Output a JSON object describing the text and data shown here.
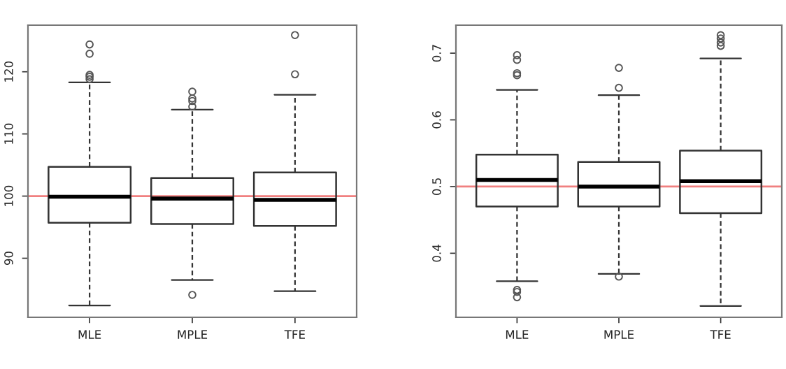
{
  "chart_data": [
    {
      "type": "box",
      "categories": [
        "MLE",
        "MPLE",
        "TFE"
      ],
      "ylim": [
        80.5,
        127.5
      ],
      "yticks": [
        90,
        100,
        110,
        120
      ],
      "grid": false,
      "boxes": [
        {
          "low": 82.4,
          "q1": 95.7,
          "median": 99.9,
          "q3": 104.7,
          "high": 118.3,
          "outliers": [
            124.4,
            122.9,
            119.5,
            119.2,
            118.8
          ]
        },
        {
          "low": 86.5,
          "q1": 95.5,
          "median": 99.6,
          "q3": 102.9,
          "high": 113.9,
          "outliers": [
            116.8,
            115.7,
            115.3,
            114.4,
            84.1
          ]
        },
        {
          "low": 84.7,
          "q1": 95.2,
          "median": 99.4,
          "q3": 103.8,
          "high": 116.3,
          "outliers": [
            125.9,
            119.6
          ]
        }
      ],
      "ref_lines": [
        {
          "axis": "y",
          "value": 100,
          "color": "#f08080"
        }
      ]
    },
    {
      "type": "box",
      "categories": [
        "MLE",
        "MPLE",
        "TFE"
      ],
      "ylim": [
        0.304,
        0.742
      ],
      "yticks": [
        0.4,
        0.5,
        0.6,
        0.7
      ],
      "grid": false,
      "boxes": [
        {
          "low": 0.358,
          "q1": 0.47,
          "median": 0.51,
          "q3": 0.548,
          "high": 0.645,
          "outliers": [
            0.697,
            0.69,
            0.67,
            0.667,
            0.345,
            0.342,
            0.334
          ]
        },
        {
          "low": 0.369,
          "q1": 0.47,
          "median": 0.5,
          "q3": 0.537,
          "high": 0.637,
          "outliers": [
            0.678,
            0.648,
            0.365
          ]
        },
        {
          "low": 0.321,
          "q1": 0.46,
          "median": 0.508,
          "q3": 0.554,
          "high": 0.692,
          "outliers": [
            0.727,
            0.722,
            0.716,
            0.711
          ]
        }
      ],
      "ref_lines": [
        {
          "axis": "y",
          "value": 0.5,
          "color": "#f08080"
        }
      ]
    }
  ]
}
